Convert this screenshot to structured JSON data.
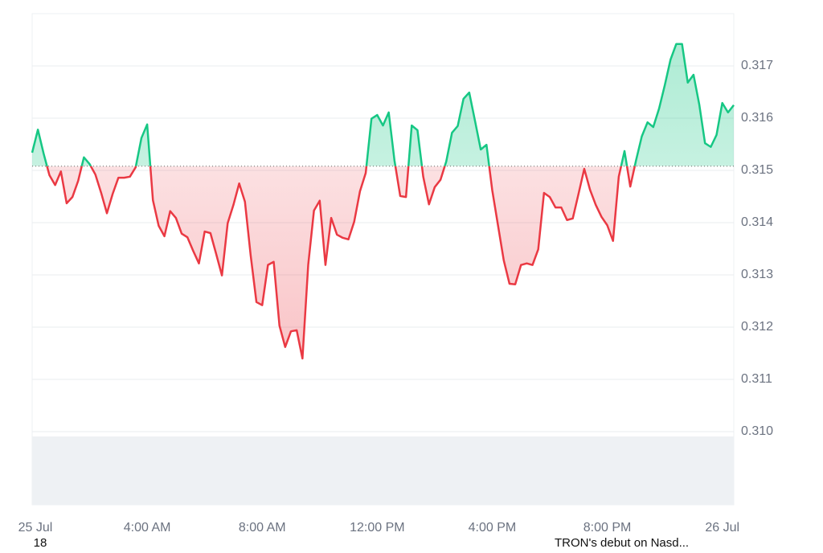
{
  "chart_data": {
    "type": "line",
    "x": [
      0,
      0.2,
      0.4,
      0.6,
      0.8,
      1,
      1.2,
      1.4,
      1.6,
      1.8,
      2,
      2.2,
      2.4,
      2.6,
      2.8,
      3,
      3.2,
      3.4,
      3.6,
      3.8,
      4,
      4.2,
      4.4,
      4.6,
      4.8,
      5,
      5.2,
      5.4,
      5.6,
      5.8,
      6,
      6.2,
      6.4,
      6.6,
      6.8,
      7,
      7.2,
      7.4,
      7.6,
      7.8,
      8,
      8.2,
      8.4,
      8.6,
      8.8,
      9,
      9.2,
      9.4,
      9.6,
      9.8,
      10,
      10.2,
      10.4,
      10.6,
      10.8,
      11,
      11.2,
      11.4,
      11.6,
      11.8,
      12,
      12.2,
      12.4,
      12.6,
      12.8,
      13,
      13.2,
      13.4,
      13.6,
      13.8,
      14,
      14.2,
      14.4,
      14.6,
      14.8,
      15,
      15.2,
      15.4,
      15.6,
      15.8,
      16,
      16.2,
      16.4,
      16.6,
      16.8,
      17,
      17.2,
      17.4,
      17.6,
      17.8,
      18,
      18.2,
      18.4,
      18.6,
      18.8,
      19,
      19.2,
      19.4,
      19.6,
      19.8,
      20,
      20.2,
      20.4,
      20.6,
      20.8,
      21,
      21.2,
      21.4,
      21.6,
      21.8,
      22,
      22.2,
      22.4,
      22.6,
      22.8,
      23,
      23.2,
      23.4,
      23.6,
      23.8,
      24,
      24.2,
      24.4
    ],
    "series": [
      {
        "values": [
          0.31534,
          0.31578,
          0.31532,
          0.31491,
          0.31472,
          0.31498,
          0.31437,
          0.31449,
          0.3148,
          0.31525,
          0.31512,
          0.31492,
          0.31457,
          0.31418,
          0.31455,
          0.31486,
          0.31486,
          0.31488,
          0.31506,
          0.31562,
          0.31588,
          0.31443,
          0.31394,
          0.31374,
          0.31422,
          0.31409,
          0.31379,
          0.31372,
          0.31346,
          0.31322,
          0.31383,
          0.3138,
          0.3134,
          0.31299,
          0.31399,
          0.31434,
          0.31475,
          0.3144,
          0.31337,
          0.31248,
          0.31242,
          0.31319,
          0.31325,
          0.31203,
          0.31162,
          0.31192,
          0.31194,
          0.3114,
          0.31319,
          0.31423,
          0.31442,
          0.31319,
          0.31409,
          0.31377,
          0.31371,
          0.31368,
          0.31402,
          0.3146,
          0.31495,
          0.31599,
          0.31606,
          0.31586,
          0.31611,
          0.31519,
          0.31451,
          0.31449,
          0.31586,
          0.31577,
          0.31488,
          0.31435,
          0.31468,
          0.31482,
          0.31517,
          0.31572,
          0.31585,
          0.31637,
          0.31649,
          0.31595,
          0.3154,
          0.31549,
          0.31462,
          0.31395,
          0.31328,
          0.31283,
          0.31282,
          0.31319,
          0.31322,
          0.31319,
          0.31349,
          0.31457,
          0.31449,
          0.31429,
          0.31429,
          0.31405,
          0.31408,
          0.31455,
          0.31503,
          0.31463,
          0.31434,
          0.31411,
          0.31395,
          0.31365,
          0.31488,
          0.31537,
          0.31469,
          0.31519,
          0.31565,
          0.31592,
          0.31583,
          0.31618,
          0.31663,
          0.31712,
          0.31742,
          0.31742,
          0.31668,
          0.31683,
          0.31626,
          0.31552,
          0.31545,
          0.31568,
          0.31629,
          0.31611,
          0.31625
        ]
      }
    ],
    "baseline": 0.31508,
    "up_color": "#16c784",
    "down_color": "#ea3943",
    "xlim": [
      0,
      24.4
    ],
    "xticks": [
      {
        "value": 0,
        "label": "25 Jul"
      },
      {
        "value": 4,
        "label": "4:00 AM"
      },
      {
        "value": 8,
        "label": "8:00 AM"
      },
      {
        "value": 12,
        "label": "12:00 PM"
      },
      {
        "value": 16,
        "label": "4:00 PM"
      },
      {
        "value": 20,
        "label": "8:00 PM"
      },
      {
        "value": 24,
        "label": "26 Jul"
      }
    ],
    "ylim": [
      0.3086,
      0.318
    ],
    "yticks": [
      {
        "value": 0.31,
        "label": "0.310"
      },
      0.311,
      0.312,
      0.313,
      0.314,
      0.315,
      0.316,
      0.317
    ],
    "grid": true,
    "annotations": [
      "18",
      "TRON's debut on Nasd..."
    ]
  }
}
